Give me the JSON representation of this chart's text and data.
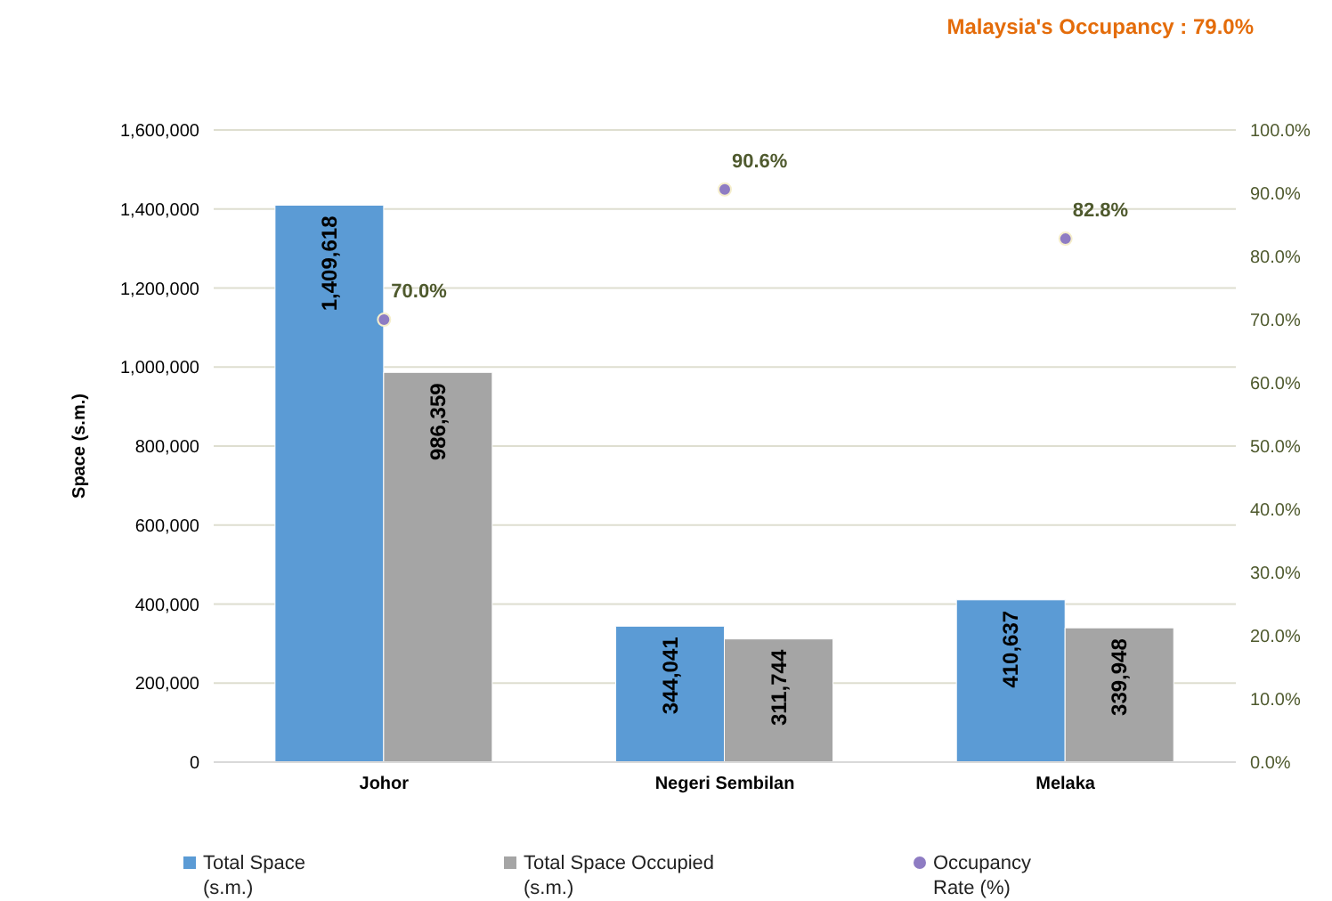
{
  "chart_data": {
    "type": "bar",
    "title": "Malaysia's Occupancy : 79.0%",
    "ylabel": "Space (s.m.)",
    "categories": [
      "Johor",
      "Negeri Sembilan",
      "Melaka"
    ],
    "series": [
      {
        "name": "Total Space (s.m.)",
        "color": "#5b9bd5",
        "values": [
          1409618,
          344041,
          410637
        ],
        "value_labels": [
          "1,409,618",
          "344,041",
          "410,637"
        ]
      },
      {
        "name": "Total Space Occupied (s.m.)",
        "color": "#a5a5a5",
        "values": [
          986359,
          311744,
          339948
        ],
        "value_labels": [
          "986,359",
          "311,744",
          "339,948"
        ]
      },
      {
        "name": "Occupancy Rate (%)",
        "type": "scatter",
        "axis": "y2",
        "color": "#8e7cc3",
        "values": [
          70.0,
          90.6,
          82.8
        ],
        "value_labels": [
          "70.0%",
          "90.6%",
          "82.8%"
        ]
      }
    ],
    "ylim": [
      0,
      1600000
    ],
    "yticks": [
      {
        "value": 0,
        "label": "0"
      },
      {
        "value": 200000,
        "label": "200,000"
      },
      {
        "value": 400000,
        "label": "400,000"
      },
      {
        "value": 600000,
        "label": "600,000"
      },
      {
        "value": 800000,
        "label": "800,000"
      },
      {
        "value": 1000000,
        "label": "1,000,000"
      },
      {
        "value": 1200000,
        "label": "1,200,000"
      },
      {
        "value": 1400000,
        "label": "1,400,000"
      },
      {
        "value": 1600000,
        "label": "1,600,000"
      }
    ],
    "y2lim": [
      0,
      100
    ],
    "y2ticks": [
      {
        "value": 0,
        "label": "0.0%"
      },
      {
        "value": 10,
        "label": "10.0%"
      },
      {
        "value": 20,
        "label": "20.0%"
      },
      {
        "value": 30,
        "label": "30.0%"
      },
      {
        "value": 40,
        "label": "40.0%"
      },
      {
        "value": 50,
        "label": "50.0%"
      },
      {
        "value": 60,
        "label": "60.0%"
      },
      {
        "value": 70,
        "label": "70.0%"
      },
      {
        "value": 80,
        "label": "80.0%"
      },
      {
        "value": 90,
        "label": "90.0%"
      },
      {
        "value": 100,
        "label": "100.0%"
      }
    ],
    "grid": "y",
    "legend": "bottom",
    "marker": "circle"
  }
}
